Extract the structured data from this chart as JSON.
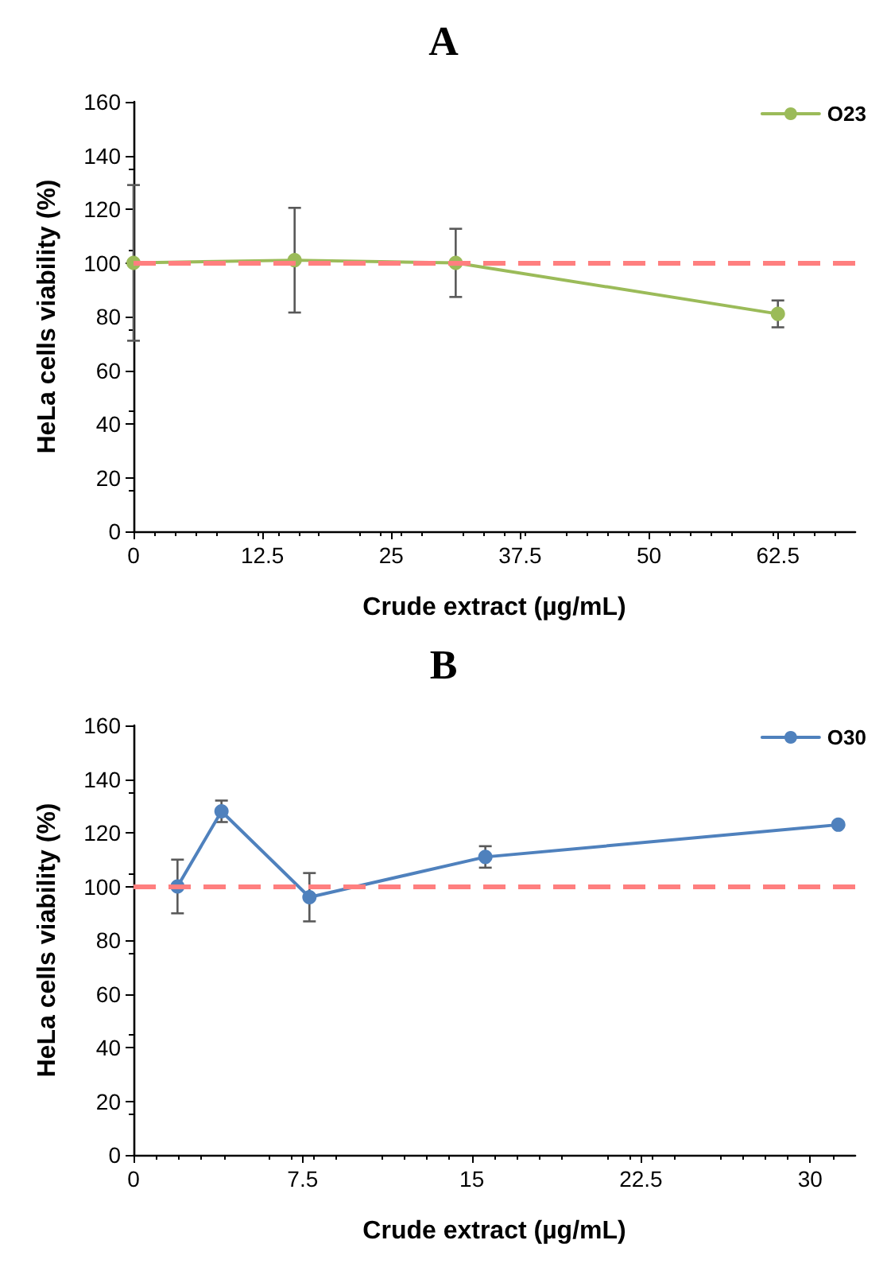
{
  "chart_data": [
    {
      "type": "line",
      "title": "A",
      "xlabel": "Crude extract (µg/mL)",
      "ylabel": "HeLa cells viability (%)",
      "x": [
        0,
        15.625,
        31.25,
        62.5
      ],
      "series": [
        {
          "name": "O23",
          "color": "#9bbb59",
          "values": [
            100,
            101,
            100,
            81
          ],
          "errors": [
            29,
            19.5,
            12.7,
            5
          ]
        }
      ],
      "xlim": [
        0,
        70
      ],
      "xticks": [
        0,
        12.5,
        25,
        37.5,
        50,
        62.5
      ],
      "ylim": [
        0,
        160
      ],
      "yticks": [
        0,
        20,
        40,
        60,
        80,
        100,
        120,
        140,
        160
      ],
      "ref_lines": [
        {
          "axis": "y",
          "value": 100,
          "color": "#ff7f7f",
          "line_style": "dashed"
        }
      ],
      "grid": false,
      "legend": "top right",
      "marker": "circle",
      "line_style": "solid"
    },
    {
      "type": "line",
      "title": "B",
      "xlabel": "Crude extract (µg/mL)",
      "ylabel": "HeLa cells viability (%)",
      "x": [
        1.95,
        3.9,
        7.8,
        15.6,
        31.25
      ],
      "series": [
        {
          "name": "O30",
          "color": "#4f81bd",
          "values": [
            100,
            128,
            96,
            111,
            123
          ],
          "errors": [
            10,
            4,
            9,
            4,
            null
          ]
        }
      ],
      "xlim": [
        0,
        32
      ],
      "xticks": [
        0,
        7.5,
        15,
        22.5,
        30
      ],
      "ylim": [
        0,
        160
      ],
      "yticks": [
        0,
        20,
        40,
        60,
        80,
        100,
        120,
        140,
        160
      ],
      "ref_lines": [
        {
          "axis": "y",
          "value": 100,
          "color": "#ff7f7f",
          "line_style": "dashed"
        }
      ],
      "grid": false,
      "legend": "top right",
      "marker": "circle",
      "line_style": "solid"
    }
  ]
}
